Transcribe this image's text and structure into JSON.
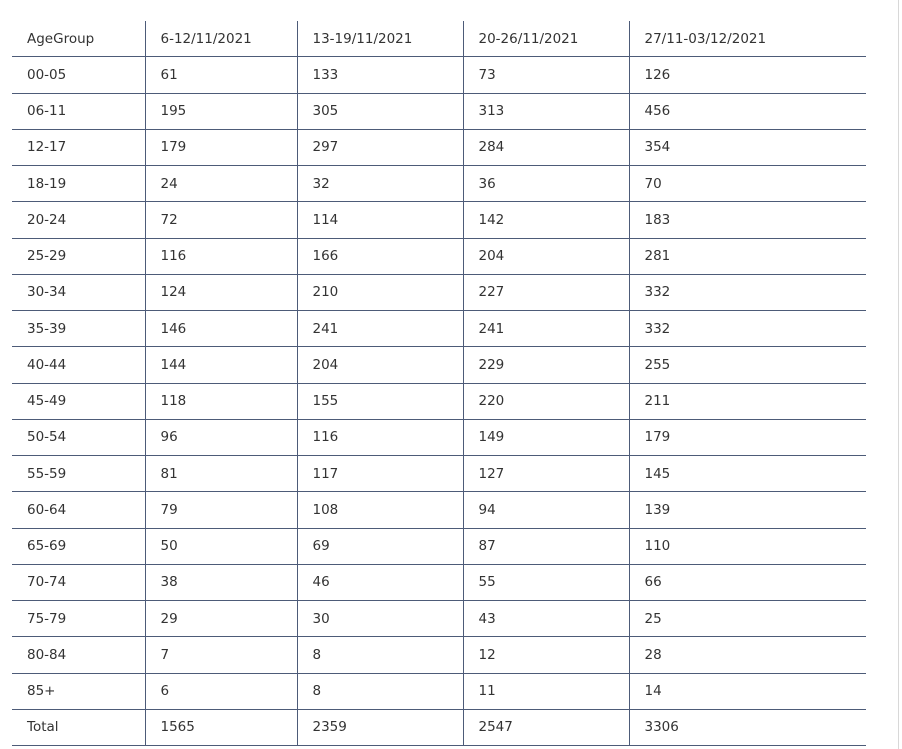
{
  "table": {
    "headers": [
      "AgeGroup",
      "6-12/11/2021",
      "13-19/11/2021",
      "20-26/11/2021",
      "27/11-03/12/2021"
    ],
    "rows": [
      [
        "00-05",
        "61",
        "133",
        "73",
        "126"
      ],
      [
        "06-11",
        "195",
        "305",
        "313",
        "456"
      ],
      [
        "12-17",
        "179",
        "297",
        "284",
        "354"
      ],
      [
        "18-19",
        "24",
        "32",
        "36",
        "70"
      ],
      [
        "20-24",
        "72",
        "114",
        "142",
        "183"
      ],
      [
        "25-29",
        "116",
        "166",
        "204",
        "281"
      ],
      [
        "30-34",
        "124",
        "210",
        "227",
        "332"
      ],
      [
        "35-39",
        "146",
        "241",
        "241",
        "332"
      ],
      [
        "40-44",
        "144",
        "204",
        "229",
        "255"
      ],
      [
        "45-49",
        "118",
        "155",
        "220",
        "211"
      ],
      [
        "50-54",
        "96",
        "116",
        "149",
        "179"
      ],
      [
        "55-59",
        "81",
        "117",
        "127",
        "145"
      ],
      [
        "60-64",
        "79",
        "108",
        "94",
        "139"
      ],
      [
        "65-69",
        "50",
        "69",
        "87",
        "110"
      ],
      [
        "70-74",
        "38",
        "46",
        "55",
        "66"
      ],
      [
        "75-79",
        "29",
        "30",
        "43",
        "25"
      ],
      [
        "80-84",
        "7",
        "8",
        "12",
        "28"
      ],
      [
        "85+",
        "6",
        "8",
        "11",
        "14"
      ],
      [
        "Total",
        "1565",
        "2359",
        "2547",
        "3306"
      ]
    ]
  },
  "colors": {
    "border": "#4d5b78",
    "text": "#333333"
  }
}
